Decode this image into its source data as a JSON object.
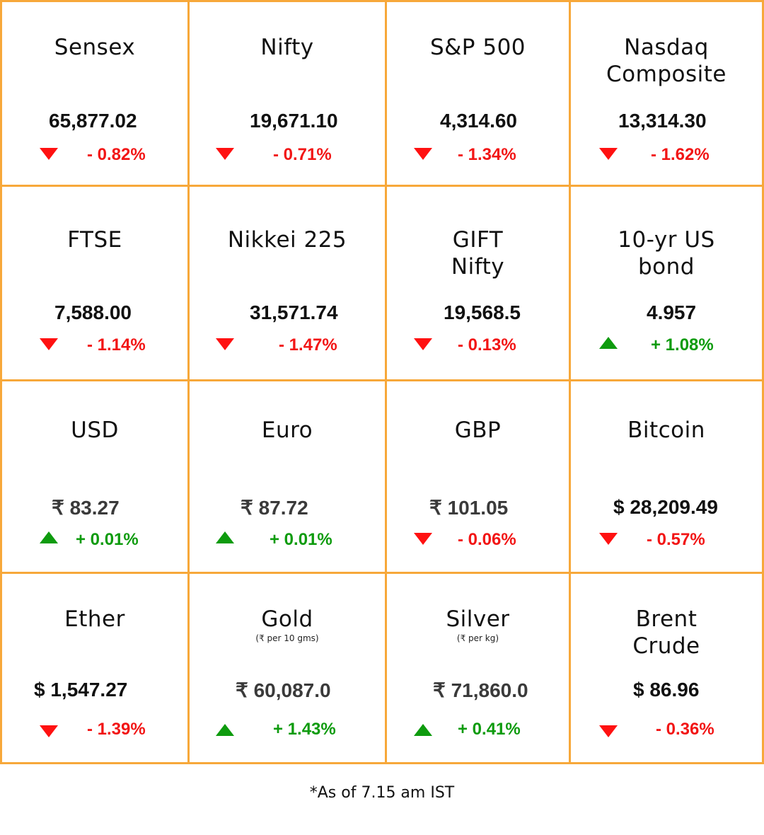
{
  "colors": {
    "border": "#F7A83A",
    "negative": "#F21515",
    "positive": "#0E9B0E"
  },
  "cells": [
    {
      "name": "Sensex",
      "value": "65,877.02",
      "change": "- 0.82%",
      "direction": "down"
    },
    {
      "name": "Nifty",
      "value": "19,671.10",
      "change": "- 0.71%",
      "direction": "down"
    },
    {
      "name": "S&P 500",
      "value": "4,314.60",
      "change": "- 1.34%",
      "direction": "down"
    },
    {
      "name": "Nasdaq\nComposite",
      "value": "13,314.30",
      "change": "- 1.62%",
      "direction": "down"
    },
    {
      "name": "FTSE",
      "value": "7,588.00",
      "change": "- 1.14%",
      "direction": "down"
    },
    {
      "name": "Nikkei 225",
      "value": "31,571.74",
      "change": "- 1.47%",
      "direction": "down"
    },
    {
      "name": "GIFT\nNifty",
      "value": "19,568.5",
      "change": "- 0.13%",
      "direction": "down"
    },
    {
      "name": "10-yr US\nbond",
      "value": "4.957",
      "change": "+ 1.08%",
      "direction": "up"
    },
    {
      "name": "USD",
      "value": "₹ 83.27",
      "change": "+ 0.01%",
      "direction": "up"
    },
    {
      "name": "Euro",
      "value": "₹ 87.72",
      "change": "+ 0.01%",
      "direction": "up"
    },
    {
      "name": "GBP",
      "value": "₹ 101.05",
      "change": "- 0.06%",
      "direction": "down"
    },
    {
      "name": "Bitcoin",
      "value": "$ 28,209.49",
      "change": "- 0.57%",
      "direction": "down"
    },
    {
      "name": "Ether",
      "value": "$ 1,547.27",
      "change": "- 1.39%",
      "direction": "down"
    },
    {
      "name": "Gold",
      "sub": "(₹ per 10 gms)",
      "value": "₹ 60,087.0",
      "change": "+ 1.43%",
      "direction": "up"
    },
    {
      "name": "Silver",
      "sub": "(₹ per kg)",
      "value": "₹ 71,860.0",
      "change": "+ 0.41%",
      "direction": "up"
    },
    {
      "name": "Brent\nCrude",
      "value": "$ 86.96",
      "change": "- 0.36%",
      "direction": "down"
    }
  ],
  "footnote": "*As of 7.15 am IST"
}
